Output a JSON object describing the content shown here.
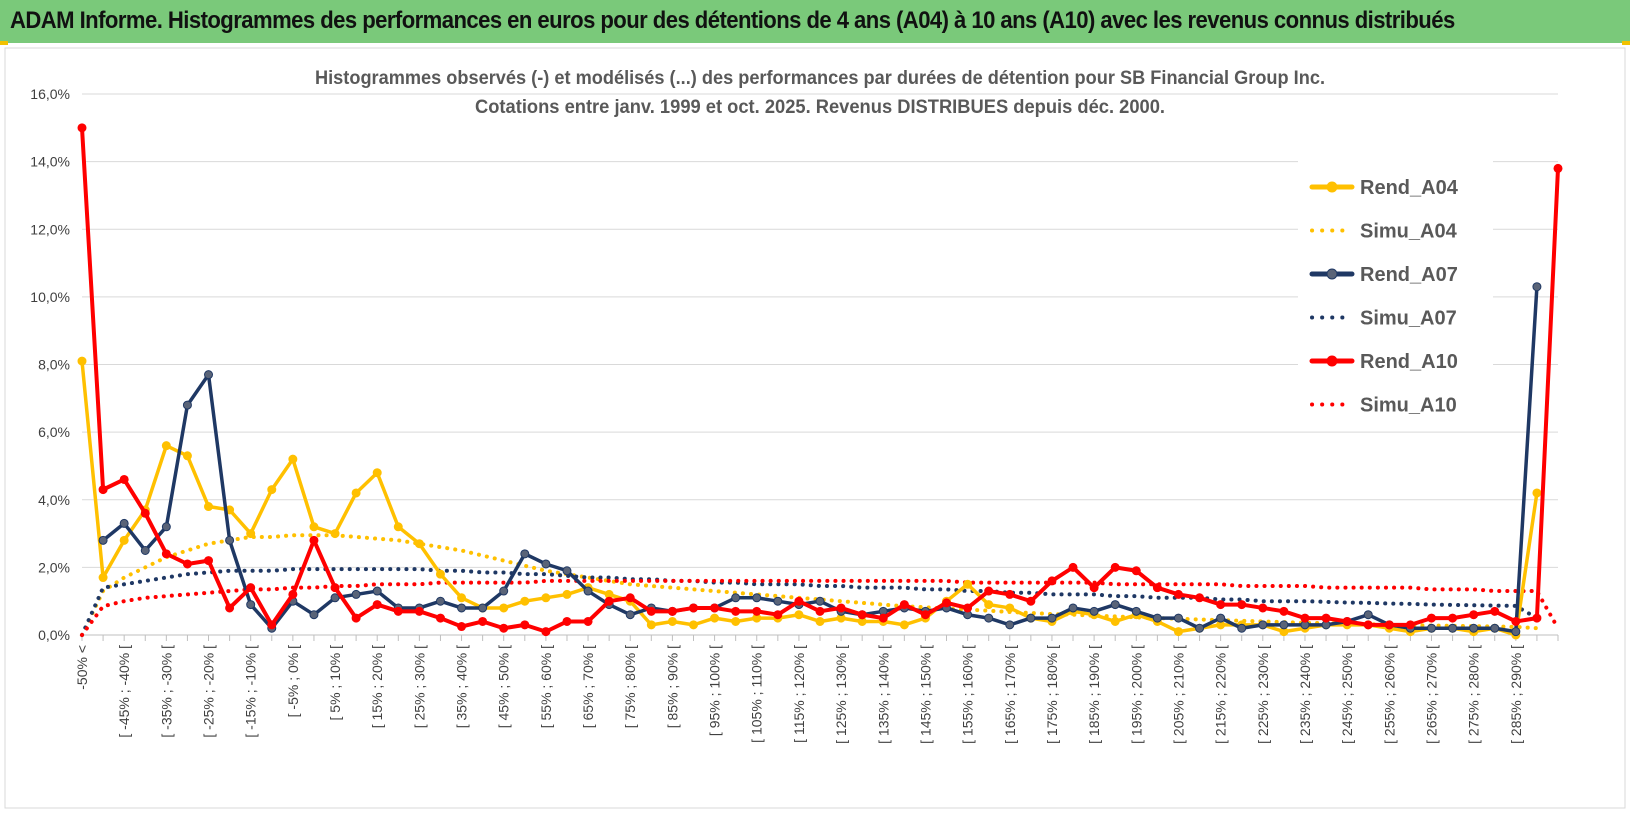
{
  "banner": {
    "title": "ADAM Informe. Histogrammes des performances en euros pour des détentions de 4 ans (A04) à 10 ans (A10) avec les revenus connus distribués"
  },
  "colors": {
    "banner_bg": "#7ac97a",
    "A04": "#ffc000",
    "A07": "#1f3864",
    "A10": "#ff0000",
    "marker_A07": "#5a6478",
    "grid": "#d9d9d9"
  },
  "chart_data": {
    "type": "line",
    "title": "Histogrammes observés (-) et modélisés (...) des performances par durées de détention pour SB Financial Group Inc.",
    "subtitle": "Cotations entre janv. 1999 et oct. 2025.  Revenus DISTRIBUES depuis déc. 2000.",
    "ylim": [
      0,
      16
    ],
    "ytick_values": [
      0,
      2,
      4,
      6,
      8,
      10,
      12,
      14,
      16
    ],
    "ytick_labels": [
      "0,0%",
      "2,0%",
      "4,0%",
      "6,0%",
      "8,0%",
      "10,0%",
      "12,0%",
      "14,0%",
      "16,0%"
    ],
    "category_count": 71,
    "x_tick_labels": [
      "-50% <",
      "[ -45% ; -40% [",
      "[ -35% ; -30% [",
      "[ -25% ; -20% [",
      "[ -15% ; -10% [",
      "[ -5% ; 0% [",
      "[ 5% ; 10% [",
      "[ 15% ; 20% [",
      "[ 25% ; 30% [",
      "[ 35% ; 40% [",
      "[ 45% ; 50% [",
      "[ 55% ; 60% [",
      "[ 65% ; 70% [",
      "[ 75% ; 80% [",
      "[ 85% ; 90% [",
      "[ 95% ; 100% [",
      "[ 105% ; 110% [",
      "[ 115% ; 120% [",
      "[ 125% ; 130% [",
      "[ 135% ; 140% [",
      "[ 145% ; 150% [",
      "[ 155% ; 160% [",
      "[ 165% ; 170% [",
      "[ 175% ; 180% [",
      "[ 185% ; 190% [",
      "[ 195% ; 200% [",
      "[ 205% ; 210% [",
      "[ 215% ; 220% [",
      "[ 225% ; 230% [",
      "[ 235% ; 240% [",
      "[ 245% ; 250% [",
      "[ 255% ; 260% [",
      "[ 265% ; 270% [",
      "[ 275% ; 280% [",
      "[ 285% ; 290% ["
    ],
    "x_tick_category_indices": [
      0,
      2,
      4,
      6,
      8,
      10,
      12,
      14,
      16,
      18,
      20,
      22,
      24,
      26,
      28,
      30,
      32,
      34,
      36,
      38,
      40,
      42,
      44,
      46,
      48,
      50,
      52,
      54,
      56,
      58,
      60,
      62,
      64,
      66,
      68
    ],
    "legend_position": "right",
    "series": [
      {
        "name": "Rend_A04",
        "style": "solid",
        "color": "#ffc000",
        "values": [
          8.1,
          1.7,
          2.8,
          3.7,
          5.6,
          5.3,
          3.8,
          3.7,
          3.0,
          4.3,
          5.2,
          3.2,
          3.0,
          4.2,
          4.8,
          3.2,
          2.7,
          1.8,
          1.1,
          0.8,
          0.8,
          1.0,
          1.1,
          1.2,
          1.4,
          1.2,
          1.0,
          0.3,
          0.4,
          0.3,
          0.5,
          0.4,
          0.5,
          0.5,
          0.6,
          0.4,
          0.5,
          0.4,
          0.4,
          0.3,
          0.5,
          1.0,
          1.5,
          0.9,
          0.8,
          0.5,
          0.4,
          0.7,
          0.6,
          0.4,
          0.6,
          0.4,
          0.1,
          0.2,
          0.3,
          0.3,
          0.3,
          0.1,
          0.2,
          0.3,
          0.3,
          0.3,
          0.2,
          0.1,
          0.2,
          0.2,
          0.1,
          0.2,
          0.0,
          4.2,
          null
        ]
      },
      {
        "name": "Simu_A04",
        "style": "dotted",
        "color": "#ffc000",
        "values": [
          0.0,
          1.3,
          1.7,
          2.0,
          2.3,
          2.5,
          2.7,
          2.8,
          2.9,
          2.9,
          2.95,
          2.95,
          2.95,
          2.9,
          2.85,
          2.8,
          2.7,
          2.6,
          2.5,
          2.35,
          2.2,
          2.05,
          1.9,
          1.8,
          1.7,
          1.6,
          1.5,
          1.45,
          1.4,
          1.35,
          1.3,
          1.25,
          1.2,
          1.15,
          1.1,
          1.05,
          1.0,
          0.95,
          0.9,
          0.85,
          0.82,
          0.78,
          0.75,
          0.72,
          0.68,
          0.65,
          0.62,
          0.6,
          0.57,
          0.55,
          0.52,
          0.5,
          0.48,
          0.46,
          0.44,
          0.42,
          0.4,
          0.38,
          0.36,
          0.35,
          0.33,
          0.32,
          0.3,
          0.29,
          0.28,
          0.27,
          0.26,
          0.25,
          0.24,
          0.2,
          null
        ]
      },
      {
        "name": "Rend_A07",
        "style": "solid",
        "color": "#1f3864",
        "values": [
          null,
          2.8,
          3.3,
          2.5,
          3.2,
          6.8,
          7.7,
          2.8,
          0.9,
          0.2,
          1.0,
          0.6,
          1.1,
          1.2,
          1.3,
          0.8,
          0.8,
          1.0,
          0.8,
          0.8,
          1.3,
          2.4,
          2.1,
          1.9,
          1.3,
          0.9,
          0.6,
          0.8,
          0.7,
          0.8,
          0.8,
          1.1,
          1.1,
          1.0,
          0.9,
          1.0,
          0.7,
          0.6,
          0.7,
          0.8,
          0.7,
          0.8,
          0.6,
          0.5,
          0.3,
          0.5,
          0.5,
          0.8,
          0.7,
          0.9,
          0.7,
          0.5,
          0.5,
          0.2,
          0.5,
          0.2,
          0.3,
          0.3,
          0.3,
          0.3,
          0.4,
          0.6,
          0.3,
          0.2,
          0.2,
          0.2,
          0.2,
          0.2,
          0.1,
          10.3,
          null
        ]
      },
      {
        "name": "Simu_A07",
        "style": "dotted",
        "color": "#1f3864",
        "values": [
          0.0,
          1.4,
          1.5,
          1.6,
          1.7,
          1.8,
          1.85,
          1.9,
          1.9,
          1.9,
          1.95,
          1.95,
          1.95,
          1.95,
          1.95,
          1.95,
          1.95,
          1.9,
          1.9,
          1.85,
          1.85,
          1.8,
          1.8,
          1.75,
          1.7,
          1.7,
          1.65,
          1.65,
          1.6,
          1.6,
          1.55,
          1.55,
          1.5,
          1.5,
          1.5,
          1.45,
          1.45,
          1.4,
          1.4,
          1.4,
          1.35,
          1.35,
          1.3,
          1.3,
          1.25,
          1.25,
          1.2,
          1.2,
          1.2,
          1.15,
          1.15,
          1.1,
          1.1,
          1.1,
          1.05,
          1.05,
          1.0,
          1.0,
          1.0,
          0.98,
          0.96,
          0.95,
          0.93,
          0.92,
          0.9,
          0.89,
          0.88,
          0.87,
          0.86,
          0.5,
          null
        ]
      },
      {
        "name": "Rend_A10",
        "style": "solid",
        "color": "#ff0000",
        "values": [
          15.0,
          4.3,
          4.6,
          3.6,
          2.4,
          2.1,
          2.2,
          0.8,
          1.4,
          0.3,
          1.2,
          2.8,
          1.4,
          0.5,
          0.9,
          0.7,
          0.7,
          0.5,
          0.25,
          0.4,
          0.2,
          0.3,
          0.1,
          0.4,
          0.4,
          1.0,
          1.1,
          0.7,
          0.7,
          0.8,
          0.8,
          0.7,
          0.7,
          0.6,
          1.0,
          0.7,
          0.8,
          0.6,
          0.5,
          0.9,
          0.6,
          0.95,
          0.8,
          1.3,
          1.2,
          1.0,
          1.6,
          2.0,
          1.4,
          2.0,
          1.9,
          1.4,
          1.2,
          1.1,
          0.9,
          0.9,
          0.8,
          0.7,
          0.5,
          0.5,
          0.4,
          0.3,
          0.3,
          0.3,
          0.5,
          0.5,
          0.6,
          0.7,
          0.4,
          0.5,
          13.8
        ]
      },
      {
        "name": "Simu_A10",
        "style": "dotted",
        "color": "#ff0000",
        "values": [
          0.0,
          0.85,
          1.0,
          1.1,
          1.15,
          1.2,
          1.25,
          1.3,
          1.35,
          1.35,
          1.4,
          1.4,
          1.45,
          1.45,
          1.5,
          1.5,
          1.5,
          1.55,
          1.55,
          1.55,
          1.55,
          1.55,
          1.6,
          1.6,
          1.6,
          1.6,
          1.6,
          1.6,
          1.6,
          1.6,
          1.6,
          1.6,
          1.6,
          1.6,
          1.6,
          1.6,
          1.6,
          1.6,
          1.6,
          1.6,
          1.6,
          1.6,
          1.55,
          1.55,
          1.55,
          1.55,
          1.55,
          1.55,
          1.55,
          1.5,
          1.5,
          1.5,
          1.5,
          1.5,
          1.5,
          1.45,
          1.45,
          1.45,
          1.45,
          1.4,
          1.4,
          1.4,
          1.4,
          1.4,
          1.35,
          1.35,
          1.35,
          1.3,
          1.3,
          1.3,
          0.2
        ]
      }
    ]
  }
}
